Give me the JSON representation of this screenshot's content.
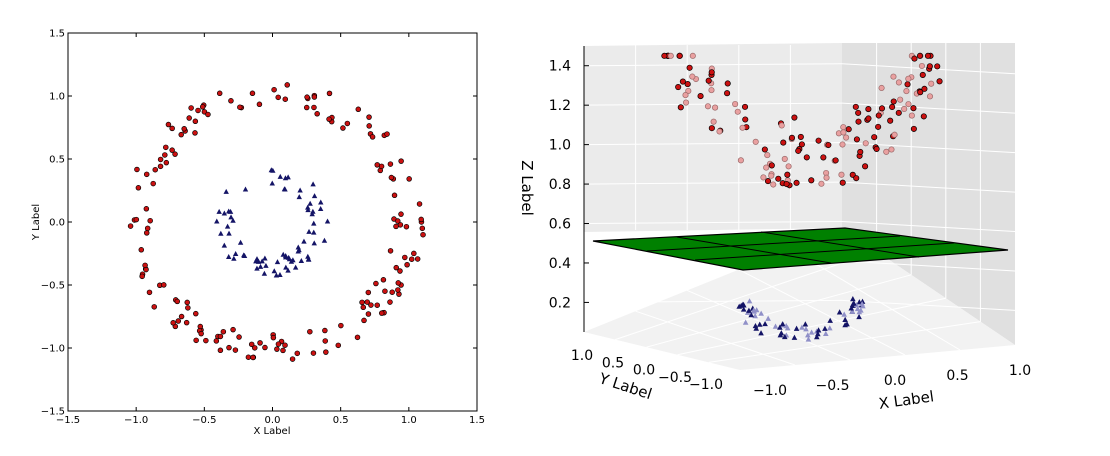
{
  "chart_data": [
    {
      "type": "scatter",
      "title": "",
      "xlabel": "X Label",
      "ylabel": "Y Label",
      "xlim": [
        -1.5,
        1.5
      ],
      "ylim": [
        -1.5,
        1.5
      ],
      "xticks": [
        "−1.5",
        "−1.0",
        "−0.5",
        "0.0",
        "0.5",
        "1.0",
        "1.5"
      ],
      "yticks": [
        "−1.5",
        "−1.0",
        "−0.5",
        "0.0",
        "0.5",
        "1.0",
        "1.5"
      ],
      "grid": false,
      "series": [
        {
          "marker": "circle",
          "color": "#cc1111",
          "shape": "ring",
          "center": [
            0,
            0
          ],
          "radius_approx": 1.0,
          "point_count_approx": 170
        },
        {
          "marker": "triangle",
          "color": "#141466",
          "shape": "ring",
          "center": [
            0,
            0
          ],
          "radius_approx": 0.35,
          "point_count_approx": 75
        }
      ]
    },
    {
      "type": "scatter3d",
      "title": "",
      "xlabel": "X Label",
      "ylabel": "Y Label",
      "zlabel": "Z Label",
      "xticks": [
        "−1.0",
        "−0.5",
        "0.0",
        "0.5",
        "1.0"
      ],
      "yticks": [
        "1.0",
        "0.5",
        "0.0",
        "−0.5",
        "−1.0"
      ],
      "zticks": [
        "0.2",
        "0.4",
        "0.6",
        "0.8",
        "1.0",
        "1.2",
        "1.4"
      ],
      "zlim": [
        0.05,
        1.5
      ],
      "plane": {
        "z": 0.5,
        "color": "#008000"
      },
      "series": [
        {
          "marker": "circle",
          "color": "#cc1111",
          "z_range": [
            0.6,
            1.45
          ]
        },
        {
          "marker": "triangle",
          "color": "#141466",
          "z_range": [
            0.05,
            0.2
          ]
        }
      ]
    }
  ]
}
